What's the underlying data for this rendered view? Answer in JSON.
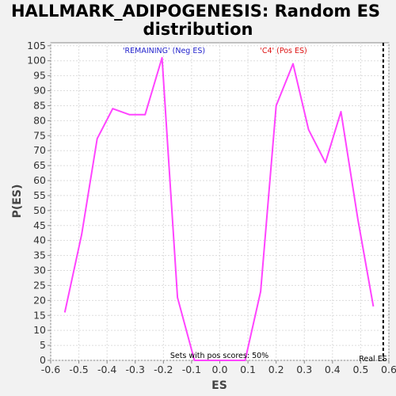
{
  "chart_data": {
    "type": "line",
    "title": "HALLMARK_ADIPOGENESIS: Random ES distribution",
    "xlabel": "ES",
    "ylabel": "P(ES)",
    "xlim": [
      -0.6,
      0.6
    ],
    "ylim": [
      0,
      106
    ],
    "grid": true,
    "x_ticks": [
      "-0.6",
      "-0.5",
      "-0.4",
      "-0.3",
      "-0.2",
      "-0.1",
      "0.0",
      "0.1",
      "0.2",
      "0.3",
      "0.4",
      "0.5",
      "0.6"
    ],
    "y_ticks": [
      "0",
      "5",
      "10",
      "15",
      "20",
      "25",
      "30",
      "35",
      "40",
      "45",
      "50",
      "55",
      "60",
      "65",
      "70",
      "75",
      "80",
      "85",
      "90",
      "95",
      "100",
      "105"
    ],
    "series": [
      {
        "color": "#ff44ff",
        "x": [
          -0.55,
          -0.49,
          -0.435,
          -0.38,
          -0.32,
          -0.265,
          -0.205,
          -0.15,
          -0.09,
          -0.03,
          0.03,
          0.09,
          0.145,
          0.2,
          0.26,
          0.315,
          0.375,
          0.43,
          0.49,
          0.545
        ],
        "y": [
          16,
          42,
          74,
          84,
          82,
          82,
          101,
          21,
          0,
          0,
          0,
          0,
          23,
          85,
          99,
          77,
          66,
          83,
          47,
          18
        ]
      }
    ],
    "annotations": {
      "neg_label": "'REMAINING' (Neg ES)",
      "pos_label": "'C4' (Pos ES)",
      "pos_scores": "Sets with pos scores: 50%",
      "real_es_label": "Real ES"
    },
    "real_es_x": 0.58,
    "colors": {
      "neg": "#2222cc",
      "pos": "#dd1111",
      "line": "#ff44ff",
      "real_es": "#000000"
    }
  }
}
